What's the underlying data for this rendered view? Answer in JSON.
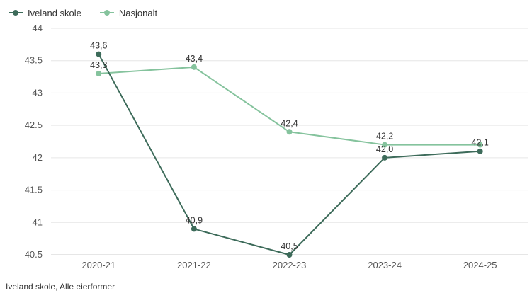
{
  "legend": {
    "series1": "Iveland skole",
    "series2": "Nasjonalt"
  },
  "footer": "Iveland skole, Alle eierformer",
  "colors": {
    "series1": "#3d6b5a",
    "series2": "#85c39d",
    "grid": "#e6e6e6"
  },
  "chart_data": {
    "type": "line",
    "title": "",
    "xlabel": "",
    "ylabel": "",
    "categories": [
      "2020-21",
      "2021-22",
      "2022-23",
      "2023-24",
      "2024-25"
    ],
    "ylim": [
      40.5,
      44
    ],
    "yticks": [
      40.5,
      41,
      41.5,
      42,
      42.5,
      43,
      43.5,
      44
    ],
    "ytick_labels": [
      "40.5",
      "41",
      "41.5",
      "42",
      "42.5",
      "43",
      "43.5",
      "44"
    ],
    "grid": true,
    "legend_position": "top-left",
    "series": [
      {
        "name": "Iveland skole",
        "values": [
          43.6,
          40.9,
          40.5,
          42.0,
          42.1
        ],
        "labels": [
          "43,6",
          "40,9",
          "40,5",
          "42,0",
          "42,1"
        ]
      },
      {
        "name": "Nasjonalt",
        "values": [
          43.3,
          43.4,
          42.4,
          42.2,
          42.2
        ],
        "labels": [
          "43,3",
          "43,4",
          "42,4",
          "42,2",
          ""
        ]
      }
    ]
  }
}
